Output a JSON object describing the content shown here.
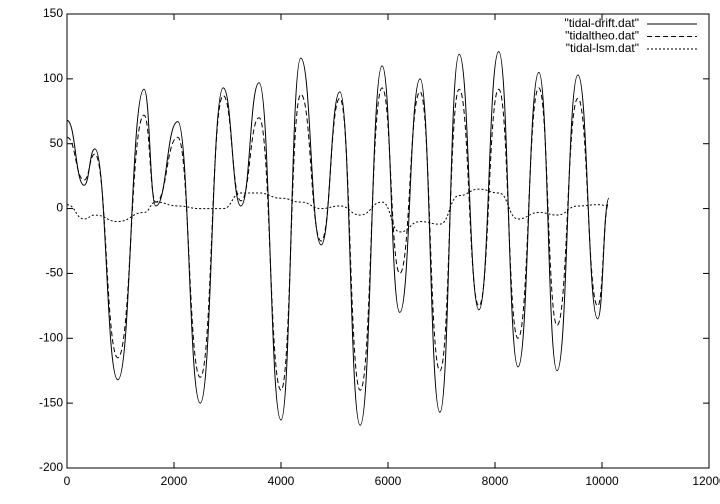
{
  "chart_data": {
    "type": "line",
    "x": [
      0,
      320,
      520,
      950,
      1440,
      1660,
      2070,
      2490,
      2920,
      3250,
      3590,
      4000,
      4370,
      4750,
      5100,
      5480,
      5890,
      6220,
      6600,
      6970,
      7330,
      7700,
      8070,
      8430,
      8820,
      9160,
      9550,
      9920,
      10130
    ],
    "series": [
      {
        "name": "\"tidal-drift.dat\"",
        "color": "#000000",
        "dash": "solid",
        "values": [
          68,
          18,
          46,
          -132,
          92,
          2,
          67,
          -150,
          93,
          2,
          97,
          -163,
          116,
          -28,
          90,
          -167,
          110,
          -80,
          100,
          -157,
          119,
          -78,
          121,
          -122,
          105,
          -125,
          103,
          -85,
          8
        ]
      },
      {
        "name": "\"tidaltheo.dat\"",
        "color": "#000000",
        "dash": "dashed",
        "values": [
          55,
          22,
          42,
          -115,
          72,
          5,
          55,
          -130,
          87,
          6,
          70,
          -140,
          88,
          -25,
          85,
          -140,
          93,
          -50,
          90,
          -125,
          92,
          -75,
          92,
          -100,
          93,
          -90,
          85,
          -75,
          5
        ]
      },
      {
        "name": "\"tidal-lsm.dat\"",
        "color": "#000000",
        "dash": "dotted",
        "values": [
          3,
          -8,
          -5,
          -10,
          -3,
          5,
          2,
          0,
          0,
          12,
          12,
          8,
          5,
          0,
          2,
          -5,
          5,
          -18,
          -10,
          -12,
          10,
          15,
          12,
          -8,
          -3,
          -5,
          2,
          3,
          2
        ]
      }
    ],
    "xlim": [
      0,
      12000
    ],
    "xticks": [
      0,
      2000,
      4000,
      6000,
      8000,
      10000,
      12000
    ],
    "ylim": [
      -200,
      150
    ],
    "yticks": [
      -200,
      -150,
      -100,
      -50,
      0,
      50,
      100,
      150
    ],
    "grid": false,
    "legend": "top-right"
  }
}
